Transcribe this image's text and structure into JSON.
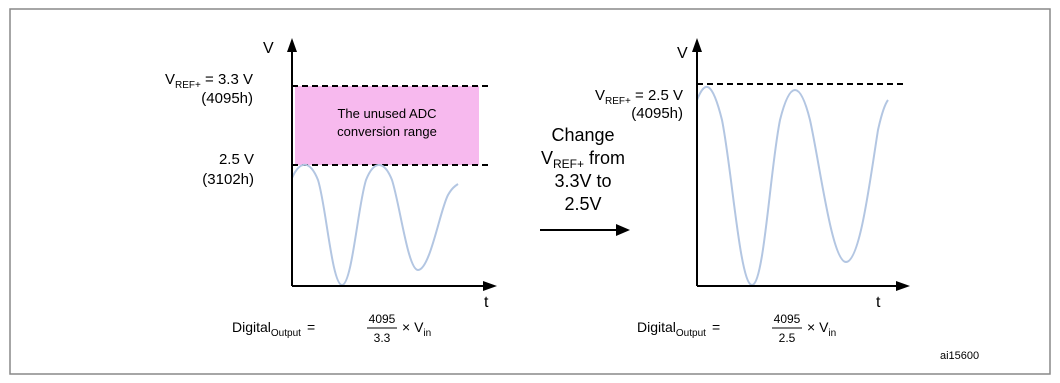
{
  "left_panel": {
    "axis_v": "V",
    "axis_t": "t",
    "vref_prefix": "V",
    "vref_sub": "REF+",
    "vref_value": " = 3.3 V",
    "vref_code": "(4095h)",
    "level_value": "2.5 V",
    "level_code": "(3102h)",
    "unused_line1": "The unused ADC",
    "unused_line2": "conversion range",
    "formula_lhs": "Digital",
    "formula_sub": "Output",
    "formula_eq": "=",
    "formula_num": "4095",
    "formula_den": "3.3",
    "formula_times": "× V",
    "formula_vsub": "in"
  },
  "middle": {
    "line1": "Change",
    "line2_prefix": "V",
    "line2_sub": "REF+",
    "line2_suffix": " from",
    "line3": "3.3V to",
    "line4": "2.5V"
  },
  "right_panel": {
    "axis_v": "V",
    "axis_t": "t",
    "vref_prefix": "V",
    "vref_sub": "REF+",
    "vref_value": " = 2.5 V",
    "vref_code": "(4095h)",
    "formula_lhs": "Digital",
    "formula_sub": "Output",
    "formula_eq": "=",
    "formula_num": "4095",
    "formula_den": "2.5",
    "formula_times": "× V",
    "formula_vsub": "in"
  },
  "figure_id": "ai15600",
  "colors": {
    "unused_fill": "#f7b9ee",
    "wave": "#b3c6e2",
    "frame": "#888888"
  }
}
